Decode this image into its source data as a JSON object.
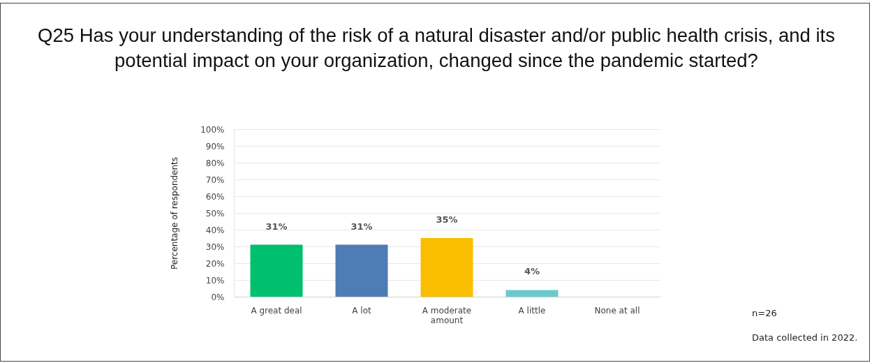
{
  "chart_data": {
    "type": "bar",
    "title": "Q25 Has your understanding of the risk of a natural disaster and/or public health crisis, and its potential impact on your organization, changed since the pandemic started?",
    "ylabel": "Percentage of respondents",
    "categories": [
      "A great deal",
      "A lot",
      "A moderate amount",
      "A little",
      "None at all"
    ],
    "values": [
      31,
      31,
      35,
      4,
      0
    ],
    "value_labels": [
      "31%",
      "31%",
      "35%",
      "4%",
      null
    ],
    "colors": [
      "#00bf6f",
      "#507cb6",
      "#f9be00",
      "#6bc8cd",
      "#a0a0a0"
    ],
    "ylim": [
      0,
      100
    ],
    "yticks": [
      {
        "value": 0,
        "label": "0%"
      },
      {
        "value": 10,
        "label": "10%"
      },
      {
        "value": 20,
        "label": "20%"
      },
      {
        "value": 30,
        "label": "30%"
      },
      {
        "value": 40,
        "label": "40%"
      },
      {
        "value": 50,
        "label": "50%"
      },
      {
        "value": 60,
        "label": "60%"
      },
      {
        "value": 70,
        "label": "70%"
      },
      {
        "value": 80,
        "label": "80%"
      },
      {
        "value": 90,
        "label": "90%"
      },
      {
        "value": 100,
        "label": "100%"
      }
    ],
    "grid": "y",
    "annotations": [
      "n=26",
      "Data collected in 2022."
    ]
  }
}
